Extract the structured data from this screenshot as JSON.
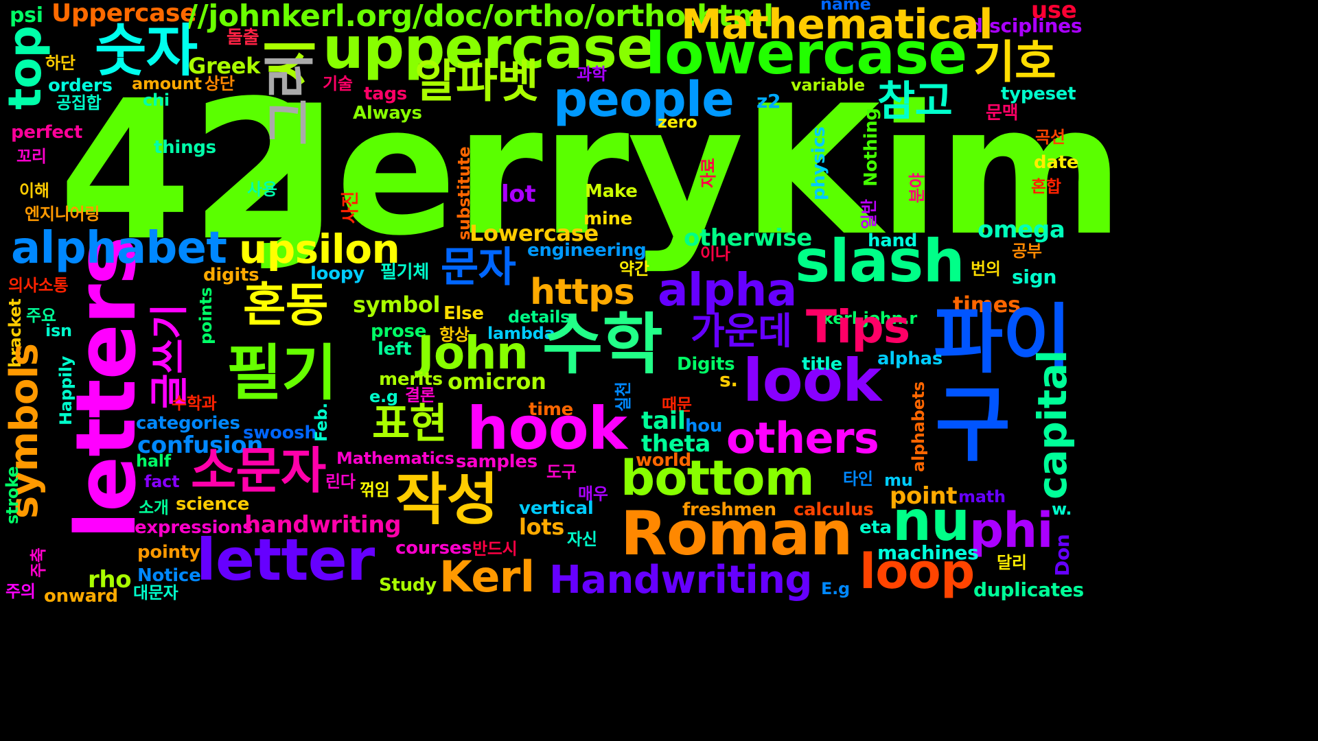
{
  "words": [
    {
      "text": "42",
      "color": "#5aff00"
    },
    {
      "text": "JerryKim",
      "color": "#5aff00"
    },
    {
      "text": "Uppercase",
      "color": "#ff6a00"
    },
    {
      "text": "//johnkerl.org/doc/ortho/ortho.html",
      "color": "#6aff00"
    },
    {
      "text": "psi",
      "color": "#00ff66"
    },
    {
      "text": "name",
      "color": "#0066ff"
    },
    {
      "text": "use",
      "color": "#ff0033"
    },
    {
      "text": "disciplines",
      "color": "#aa00ff"
    },
    {
      "text": "Mathematical",
      "color": "#ffcc00"
    },
    {
      "text": "숫자",
      "color": "#00ffee"
    },
    {
      "text": "시",
      "color": "#aaff00"
    },
    {
      "text": "uppercase",
      "color": "#88ff00"
    },
    {
      "text": "lowercase",
      "color": "#22ff00"
    },
    {
      "text": "기호",
      "color": "#ffdd00"
    },
    {
      "text": "돌출",
      "color": "#ff2244"
    },
    {
      "text": "top",
      "color": "#00ffaa"
    },
    {
      "text": "Greek",
      "color": "#aaff00"
    },
    {
      "text": "하단",
      "color": "#ffcc00"
    },
    {
      "text": "orders",
      "color": "#00ffdd"
    },
    {
      "text": "amount",
      "color": "#ffaa00"
    },
    {
      "text": "상단",
      "color": "#ff8800"
    },
    {
      "text": "기술",
      "color": "#ff0066"
    },
    {
      "text": "tags",
      "color": "#ff0066"
    },
    {
      "text": "과학",
      "color": "#aa00ff"
    },
    {
      "text": "알파벳",
      "color": "#aaff00"
    },
    {
      "text": "people",
      "color": "#0099ff"
    },
    {
      "text": "참고",
      "color": "#00ffcc"
    },
    {
      "text": "variable",
      "color": "#aaff00"
    },
    {
      "text": "typeset",
      "color": "#00ffcc"
    },
    {
      "text": "공집합",
      "color": "#00ffcc"
    },
    {
      "text": "chi",
      "color": "#00ffaa"
    },
    {
      "text": "그리",
      "color": "#aaaaaa"
    },
    {
      "text": "Always",
      "color": "#88ff00"
    },
    {
      "text": "z2",
      "color": "#00aaff"
    },
    {
      "text": "문맥",
      "color": "#ff0066"
    },
    {
      "text": "perfect",
      "color": "#ff0099"
    },
    {
      "text": "zero",
      "color": "#ffee00"
    },
    {
      "text": "곡선",
      "color": "#ff4400"
    },
    {
      "text": "things",
      "color": "#00ffaa"
    },
    {
      "text": "꼬리",
      "color": "#ff00cc"
    },
    {
      "text": "date",
      "color": "#ffee00"
    },
    {
      "text": "physics",
      "color": "#00ccff"
    },
    {
      "text": "Nothing",
      "color": "#44ff00"
    },
    {
      "text": "substitute",
      "color": "#ff6600"
    },
    {
      "text": "자료",
      "color": "#ff0044"
    },
    {
      "text": "사진",
      "color": "#ff2200"
    },
    {
      "text": "이해",
      "color": "#ffcc00"
    },
    {
      "text": "사용",
      "color": "#00ffaa"
    },
    {
      "text": "lot",
      "color": "#aa00ff"
    },
    {
      "text": "Make",
      "color": "#ccff00"
    },
    {
      "text": "분야",
      "color": "#ff0077"
    },
    {
      "text": "일반",
      "color": "#bb00ff"
    },
    {
      "text": "혼합",
      "color": "#ff2200"
    },
    {
      "text": "엔지니어링",
      "color": "#ff9900"
    },
    {
      "text": "mine",
      "color": "#ffdd00"
    },
    {
      "text": "letters",
      "color": "#ff00ff"
    },
    {
      "text": "alphabet",
      "color": "#0088ff"
    },
    {
      "text": "upsilon",
      "color": "#ffff00"
    },
    {
      "text": "Lowercase",
      "color": "#ffcc00"
    },
    {
      "text": "otherwise",
      "color": "#00ff88"
    },
    {
      "text": "omega",
      "color": "#00ffbb"
    },
    {
      "text": "slash",
      "color": "#00ff88"
    },
    {
      "text": "engineering",
      "color": "#0099ff"
    },
    {
      "text": "이나",
      "color": "#ff0044"
    },
    {
      "text": "hand",
      "color": "#00ffdd"
    },
    {
      "text": "공부",
      "color": "#ff8800"
    },
    {
      "text": "문자",
      "color": "#0066ff"
    },
    {
      "text": "digits",
      "color": "#ffaa00"
    },
    {
      "text": "loopy",
      "color": "#00ccff"
    },
    {
      "text": "필기체",
      "color": "#00ffcc"
    },
    {
      "text": "약간",
      "color": "#ffee00"
    },
    {
      "text": "번의",
      "color": "#ffdd00"
    },
    {
      "text": "https",
      "color": "#ffaa00"
    },
    {
      "text": "alpha",
      "color": "#6600ff"
    },
    {
      "text": "sign",
      "color": "#00ffcc"
    },
    {
      "text": "의사소통",
      "color": "#ff2200"
    },
    {
      "text": "points",
      "color": "#00ff66"
    },
    {
      "text": "혼동",
      "color": "#ffff00"
    },
    {
      "text": "글쓰기",
      "color": "#ff00ff"
    },
    {
      "text": "symbol",
      "color": "#aaff00"
    },
    {
      "text": "Else",
      "color": "#ffdd00"
    },
    {
      "text": "details",
      "color": "#00ff88"
    },
    {
      "text": "kerl.john.r",
      "color": "#00ff66"
    },
    {
      "text": "times",
      "color": "#ff6600"
    },
    {
      "text": "bracket",
      "color": "#ffcc00"
    },
    {
      "text": "주요",
      "color": "#00ff99"
    },
    {
      "text": "isn",
      "color": "#00ffcc"
    },
    {
      "text": "Tips",
      "color": "#ff0066"
    },
    {
      "text": "가운데",
      "color": "#6600ff"
    },
    {
      "text": "prose",
      "color": "#00ff66"
    },
    {
      "text": "lambda",
      "color": "#00ccff"
    },
    {
      "text": "symbols",
      "color": "#ff9900"
    },
    {
      "text": "항상",
      "color": "#ffcc00"
    },
    {
      "text": "left",
      "color": "#00ff99"
    },
    {
      "text": "John",
      "color": "#88ff00"
    },
    {
      "text": "수학",
      "color": "#22ff88"
    },
    {
      "text": "파이",
      "color": "#0055ff"
    },
    {
      "text": "capital",
      "color": "#00ff99"
    },
    {
      "text": "Happily",
      "color": "#00ffcc"
    },
    {
      "text": "look",
      "color": "#8800ff"
    },
    {
      "text": "alphas",
      "color": "#00ccff"
    },
    {
      "text": "title",
      "color": "#00ffcc"
    },
    {
      "text": "Digits",
      "color": "#00ff66"
    },
    {
      "text": "필기",
      "color": "#66ff00"
    },
    {
      "text": "merits",
      "color": "#aaff00"
    },
    {
      "text": "omicron",
      "color": "#aaff00"
    },
    {
      "text": "s.",
      "color": "#ffcc00"
    },
    {
      "text": "e.g",
      "color": "#00ffcc"
    },
    {
      "text": "결론",
      "color": "#ff00cc"
    },
    {
      "text": "실천",
      "color": "#0088ff"
    },
    {
      "text": "때문",
      "color": "#ff2200"
    },
    {
      "text": "alphabets",
      "color": "#ff6600"
    },
    {
      "text": "수학과",
      "color": "#ff2200"
    },
    {
      "text": "표현",
      "color": "#aaff00"
    },
    {
      "text": "categories",
      "color": "#0088ff"
    },
    {
      "text": "time",
      "color": "#ff6600"
    },
    {
      "text": "tail",
      "color": "#00ff99"
    },
    {
      "text": "hou",
      "color": "#0088ff"
    },
    {
      "text": "hook",
      "color": "#ff00ff"
    },
    {
      "text": "others",
      "color": "#ff00ff"
    },
    {
      "text": "confusion",
      "color": "#0088ff"
    },
    {
      "text": "swoosh",
      "color": "#0066ff"
    },
    {
      "text": "Feb.",
      "color": "#00ffcc"
    },
    {
      "text": "theta",
      "color": "#00ff99"
    },
    {
      "text": "stroke",
      "color": "#00ff66"
    },
    {
      "text": "half",
      "color": "#00ff66"
    },
    {
      "text": "Mathematics",
      "color": "#ff00cc"
    },
    {
      "text": "samples",
      "color": "#ff00cc"
    },
    {
      "text": "world",
      "color": "#ff6600"
    },
    {
      "text": "구",
      "color": "#0055ff"
    },
    {
      "text": "소문자",
      "color": "#ff00aa"
    },
    {
      "text": "fact",
      "color": "#8800ff"
    },
    {
      "text": "도구",
      "color": "#ff00cc"
    },
    {
      "text": "bottom",
      "color": "#88ff00"
    },
    {
      "text": "타인",
      "color": "#0088ff"
    },
    {
      "text": "mu",
      "color": "#00ccff"
    },
    {
      "text": "point",
      "color": "#ffaa00"
    },
    {
      "text": "math",
      "color": "#6600ff"
    },
    {
      "text": "작성",
      "color": "#ffcc00"
    },
    {
      "text": "린다",
      "color": "#ff00cc"
    },
    {
      "text": "꺾임",
      "color": "#ffff00"
    },
    {
      "text": "매우",
      "color": "#aa00ff"
    },
    {
      "text": "vertical",
      "color": "#00ccff"
    },
    {
      "text": "freshmen",
      "color": "#ff9900"
    },
    {
      "text": "calculus",
      "color": "#ff4400"
    },
    {
      "text": "w.",
      "color": "#00ffcc"
    },
    {
      "text": "소개",
      "color": "#00ff99"
    },
    {
      "text": "science",
      "color": "#ffcc00"
    },
    {
      "text": "expressions",
      "color": "#ff00cc"
    },
    {
      "text": "handwriting",
      "color": "#ff00aa"
    },
    {
      "text": "lots",
      "color": "#ffaa00"
    },
    {
      "text": "eta",
      "color": "#00ffcc"
    },
    {
      "text": "nu",
      "color": "#00ff88"
    },
    {
      "text": "phi",
      "color": "#aa00ff"
    },
    {
      "text": "Roman",
      "color": "#ff8800"
    },
    {
      "text": "자신",
      "color": "#00ffcc"
    },
    {
      "text": "pointy",
      "color": "#ff9900"
    },
    {
      "text": "letter",
      "color": "#6600ff"
    },
    {
      "text": "courses",
      "color": "#ff00cc"
    },
    {
      "text": "반드시",
      "color": "#ff0044"
    },
    {
      "text": "machines",
      "color": "#00ffdd"
    },
    {
      "text": "달리",
      "color": "#ffee00"
    },
    {
      "text": "Don",
      "color": "#6600ff"
    },
    {
      "text": "주축",
      "color": "#ff00cc"
    },
    {
      "text": "rho",
      "color": "#aaff00"
    },
    {
      "text": "Notice",
      "color": "#0088ff"
    },
    {
      "text": "Kerl",
      "color": "#ff9900"
    },
    {
      "text": "Handwriting",
      "color": "#6600ff"
    },
    {
      "text": "loop",
      "color": "#ff4400"
    },
    {
      "text": "주의",
      "color": "#ff00ff"
    },
    {
      "text": "onward",
      "color": "#ffaa00"
    },
    {
      "text": "대문자",
      "color": "#00ffcc"
    },
    {
      "text": "Study",
      "color": "#aaff00"
    },
    {
      "text": "E.g",
      "color": "#0088ff"
    },
    {
      "text": "duplicates",
      "color": "#00ff99"
    }
  ]
}
